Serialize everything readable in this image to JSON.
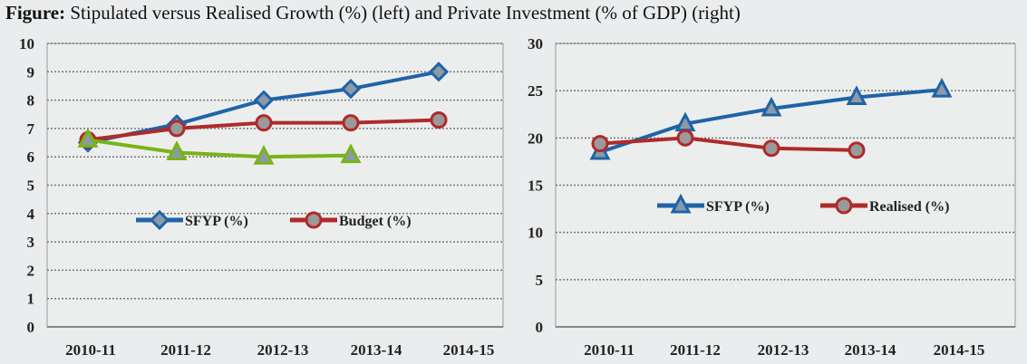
{
  "title_prefix": "Figure:",
  "title_text": "Stipulated versus Realised Growth (%) (left) and Private Investment (% of GDP) (right)",
  "chart_data": [
    {
      "type": "line",
      "categories": [
        "2010-11",
        "2011-12",
        "2012-13",
        "2013-14",
        "2014-15"
      ],
      "ylim": [
        0,
        10
      ],
      "yticks": [
        0,
        1,
        2,
        3,
        4,
        5,
        6,
        7,
        8,
        9,
        10
      ],
      "grid": true,
      "legend_placement": "bottom-center",
      "series": [
        {
          "name": "SFYP (%)",
          "color": "#1f63a8",
          "marker": "diamond",
          "values": [
            6.5,
            7.15,
            8.0,
            8.4,
            9.0
          ]
        },
        {
          "name": "Budget (%)",
          "color": "#b02a2a",
          "marker": "circle",
          "values": [
            6.6,
            7.0,
            7.2,
            7.2,
            7.3
          ]
        },
        {
          "color": "#7ab317",
          "marker": "triangle",
          "values": [
            6.6,
            6.15,
            6.0,
            6.05,
            null
          ]
        }
      ]
    },
    {
      "type": "line",
      "categories": [
        "2010-11",
        "2011-12",
        "2012-13",
        "2013-14",
        "2014-15"
      ],
      "ylim": [
        0,
        30
      ],
      "yticks": [
        0,
        5,
        10,
        15,
        20,
        25,
        30
      ],
      "grid": true,
      "legend_placement": "center",
      "series": [
        {
          "name": "SFYP (%)",
          "color": "#1f63a8",
          "marker": "triangle",
          "values": [
            18.5,
            21.5,
            23.1,
            24.3,
            25.1
          ]
        },
        {
          "name": "Realised (%)",
          "color": "#b02a2a",
          "marker": "circle",
          "values": [
            19.4,
            20.0,
            18.9,
            18.7,
            null
          ]
        }
      ]
    }
  ]
}
